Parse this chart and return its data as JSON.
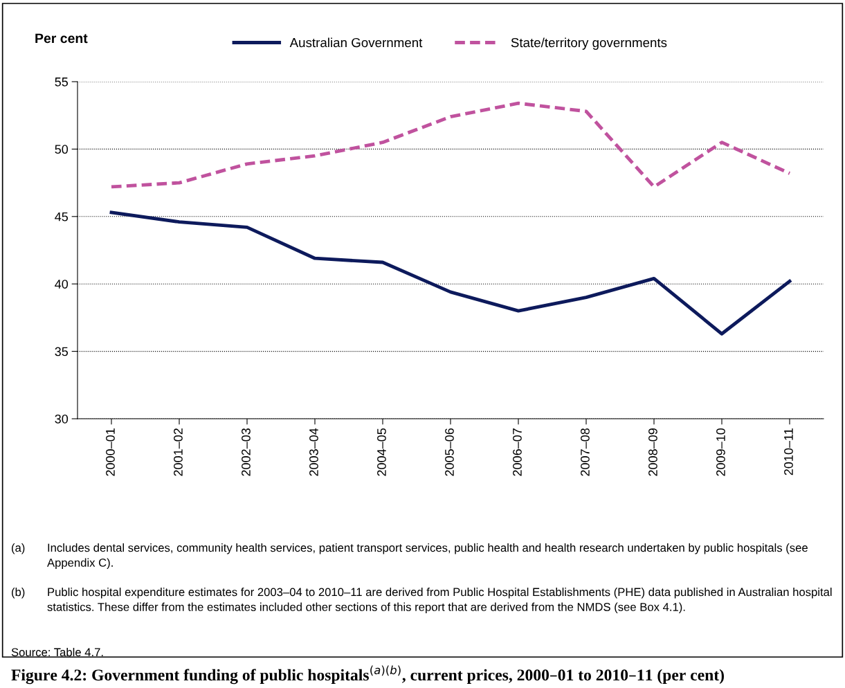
{
  "chart_data": {
    "type": "line",
    "title": "Figure 4.2: Government funding of public hospitals$^{(a)(b)}$, current prices, 2000–01 to 2010–11 (per cent)",
    "ylabel": "Per cent",
    "categories": [
      "2000–01",
      "2001–02",
      "2002–03",
      "2003–04",
      "2004–05",
      "2005–06",
      "2006–07",
      "2007–08",
      "2008–09",
      "2009–10",
      "2010–11"
    ],
    "series": [
      {
        "name": "Australian Government",
        "color": "#0d1a5c",
        "line_style": "solid",
        "values": [
          45.3,
          44.6,
          44.2,
          41.9,
          41.6,
          39.4,
          38.0,
          39.0,
          40.4,
          36.3,
          40.2
        ]
      },
      {
        "name": "State/territory governments",
        "color": "#c0529e",
        "line_style": "dashed",
        "values": [
          47.2,
          47.5,
          48.9,
          49.5,
          50.5,
          52.4,
          53.4,
          52.8,
          47.2,
          50.5,
          48.2
        ]
      }
    ],
    "ylim": [
      30,
      55
    ],
    "yticks": [
      30,
      35,
      40,
      45,
      50,
      55
    ],
    "grid": "y",
    "legend": "top",
    "marker": "none",
    "annotations": [
      "(a) Includes dental services, community health services, patient transport services, public health and health research undertaken by public hospitals (see Appendix C).",
      "(b) Public hospital expenditure estimates for 2003–04 to 2010–11 are derived from Public Hospital Establishments (PHE) data published in Australian hospital statistics. These differ from the estimates included other sections of this report that are derived from the NMDS (see Box 4.1).",
      "Source: Table 4.7."
    ]
  }
}
